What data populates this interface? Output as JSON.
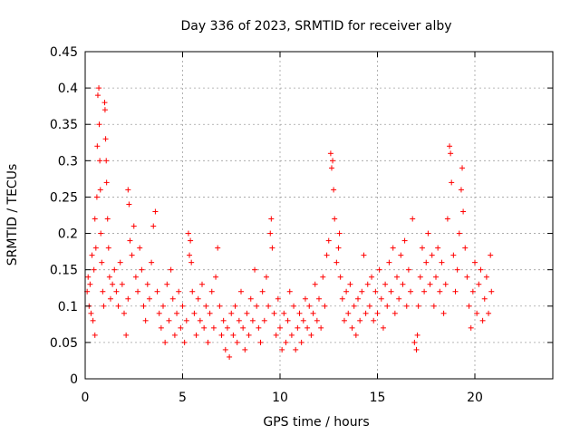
{
  "chart_data": {
    "type": "scatter",
    "title": "Day 336 of 2023, SRMTID for receiver alby",
    "xlabel": "GPS time / hours",
    "ylabel": "SRMTID / TECUs",
    "xlim": [
      0,
      24
    ],
    "ylim": [
      0,
      0.45
    ],
    "xticks": [
      "0",
      "5",
      "10",
      "15",
      "20"
    ],
    "yticks": [
      "0",
      "0.05",
      "0.1",
      "0.15",
      "0.2",
      "0.25",
      "0.3",
      "0.35",
      "0.4",
      "0.45"
    ],
    "grid": true,
    "marker": "plus",
    "series": [
      {
        "color": "#ff0000",
        "points": [
          [
            0.1,
            0.12
          ],
          [
            0.15,
            0.14
          ],
          [
            0.2,
            0.1
          ],
          [
            0.25,
            0.13
          ],
          [
            0.3,
            0.09
          ],
          [
            0.35,
            0.17
          ],
          [
            0.4,
            0.08
          ],
          [
            0.45,
            0.15
          ],
          [
            0.5,
            0.06
          ],
          [
            0.5,
            0.22
          ],
          [
            0.55,
            0.18
          ],
          [
            0.6,
            0.25
          ],
          [
            0.62,
            0.32
          ],
          [
            0.65,
            0.39
          ],
          [
            0.7,
            0.4
          ],
          [
            0.72,
            0.35
          ],
          [
            0.75,
            0.3
          ],
          [
            0.78,
            0.26
          ],
          [
            0.8,
            0.2
          ],
          [
            0.85,
            0.16
          ],
          [
            0.9,
            0.12
          ],
          [
            0.95,
            0.1
          ],
          [
            1.0,
            0.38
          ],
          [
            1.02,
            0.37
          ],
          [
            1.05,
            0.33
          ],
          [
            1.08,
            0.3
          ],
          [
            1.1,
            0.27
          ],
          [
            1.15,
            0.22
          ],
          [
            1.2,
            0.18
          ],
          [
            1.25,
            0.14
          ],
          [
            1.3,
            0.11
          ],
          [
            1.4,
            0.13
          ],
          [
            1.5,
            0.15
          ],
          [
            1.6,
            0.12
          ],
          [
            1.7,
            0.1
          ],
          [
            1.8,
            0.16
          ],
          [
            1.9,
            0.13
          ],
          [
            2.0,
            0.09
          ],
          [
            2.1,
            0.06
          ],
          [
            2.2,
            0.11
          ],
          [
            2.2,
            0.26
          ],
          [
            2.25,
            0.24
          ],
          [
            2.3,
            0.19
          ],
          [
            2.4,
            0.17
          ],
          [
            2.5,
            0.21
          ],
          [
            2.6,
            0.14
          ],
          [
            2.7,
            0.12
          ],
          [
            2.8,
            0.18
          ],
          [
            2.9,
            0.15
          ],
          [
            3.0,
            0.1
          ],
          [
            3.1,
            0.08
          ],
          [
            3.2,
            0.13
          ],
          [
            3.3,
            0.11
          ],
          [
            3.4,
            0.16
          ],
          [
            3.5,
            0.21
          ],
          [
            3.6,
            0.23
          ],
          [
            3.7,
            0.12
          ],
          [
            3.8,
            0.09
          ],
          [
            3.9,
            0.07
          ],
          [
            4.0,
            0.1
          ],
          [
            4.1,
            0.05
          ],
          [
            4.2,
            0.13
          ],
          [
            4.3,
            0.08
          ],
          [
            4.4,
            0.15
          ],
          [
            4.5,
            0.11
          ],
          [
            4.6,
            0.06
          ],
          [
            4.7,
            0.09
          ],
          [
            4.8,
            0.12
          ],
          [
            4.9,
            0.07
          ],
          [
            5.0,
            0.1
          ],
          [
            5.1,
            0.05
          ],
          [
            5.2,
            0.08
          ],
          [
            5.3,
            0.2
          ],
          [
            5.35,
            0.17
          ],
          [
            5.4,
            0.19
          ],
          [
            5.45,
            0.16
          ],
          [
            5.5,
            0.12
          ],
          [
            5.6,
            0.09
          ],
          [
            5.7,
            0.06
          ],
          [
            5.8,
            0.11
          ],
          [
            5.9,
            0.08
          ],
          [
            6.0,
            0.13
          ],
          [
            6.1,
            0.07
          ],
          [
            6.2,
            0.1
          ],
          [
            6.3,
            0.05
          ],
          [
            6.4,
            0.09
          ],
          [
            6.5,
            0.12
          ],
          [
            6.6,
            0.07
          ],
          [
            6.7,
            0.14
          ],
          [
            6.8,
            0.18
          ],
          [
            6.9,
            0.1
          ],
          [
            7.0,
            0.06
          ],
          [
            7.1,
            0.08
          ],
          [
            7.2,
            0.04
          ],
          [
            7.3,
            0.07
          ],
          [
            7.4,
            0.03
          ],
          [
            7.5,
            0.09
          ],
          [
            7.6,
            0.06
          ],
          [
            7.7,
            0.1
          ],
          [
            7.8,
            0.05
          ],
          [
            7.9,
            0.08
          ],
          [
            8.0,
            0.12
          ],
          [
            8.1,
            0.07
          ],
          [
            8.2,
            0.04
          ],
          [
            8.3,
            0.09
          ],
          [
            8.4,
            0.06
          ],
          [
            8.5,
            0.11
          ],
          [
            8.6,
            0.08
          ],
          [
            8.7,
            0.15
          ],
          [
            8.8,
            0.1
          ],
          [
            8.9,
            0.07
          ],
          [
            9.0,
            0.05
          ],
          [
            9.1,
            0.12
          ],
          [
            9.2,
            0.08
          ],
          [
            9.3,
            0.14
          ],
          [
            9.4,
            0.1
          ],
          [
            9.5,
            0.2
          ],
          [
            9.55,
            0.22
          ],
          [
            9.6,
            0.18
          ],
          [
            9.7,
            0.09
          ],
          [
            9.8,
            0.06
          ],
          [
            9.9,
            0.11
          ],
          [
            10.0,
            0.07
          ],
          [
            10.1,
            0.04
          ],
          [
            10.2,
            0.09
          ],
          [
            10.3,
            0.05
          ],
          [
            10.4,
            0.08
          ],
          [
            10.5,
            0.12
          ],
          [
            10.6,
            0.06
          ],
          [
            10.7,
            0.1
          ],
          [
            10.8,
            0.04
          ],
          [
            10.9,
            0.07
          ],
          [
            11.0,
            0.09
          ],
          [
            11.1,
            0.05
          ],
          [
            11.2,
            0.08
          ],
          [
            11.3,
            0.11
          ],
          [
            11.4,
            0.07
          ],
          [
            11.5,
            0.1
          ],
          [
            11.6,
            0.06
          ],
          [
            11.7,
            0.09
          ],
          [
            11.8,
            0.13
          ],
          [
            11.9,
            0.08
          ],
          [
            12.0,
            0.11
          ],
          [
            12.1,
            0.07
          ],
          [
            12.2,
            0.14
          ],
          [
            12.3,
            0.1
          ],
          [
            12.4,
            0.17
          ],
          [
            12.5,
            0.19
          ],
          [
            12.6,
            0.31
          ],
          [
            12.65,
            0.29
          ],
          [
            12.7,
            0.3
          ],
          [
            12.75,
            0.26
          ],
          [
            12.8,
            0.22
          ],
          [
            12.9,
            0.16
          ],
          [
            13.0,
            0.18
          ],
          [
            13.05,
            0.2
          ],
          [
            13.1,
            0.14
          ],
          [
            13.2,
            0.11
          ],
          [
            13.3,
            0.08
          ],
          [
            13.4,
            0.12
          ],
          [
            13.5,
            0.09
          ],
          [
            13.6,
            0.13
          ],
          [
            13.7,
            0.07
          ],
          [
            13.8,
            0.1
          ],
          [
            13.9,
            0.06
          ],
          [
            14.0,
            0.11
          ],
          [
            14.1,
            0.08
          ],
          [
            14.2,
            0.12
          ],
          [
            14.3,
            0.17
          ],
          [
            14.4,
            0.09
          ],
          [
            14.5,
            0.13
          ],
          [
            14.6,
            0.1
          ],
          [
            14.7,
            0.14
          ],
          [
            14.8,
            0.08
          ],
          [
            14.9,
            0.12
          ],
          [
            15.0,
            0.09
          ],
          [
            15.1,
            0.15
          ],
          [
            15.2,
            0.11
          ],
          [
            15.3,
            0.07
          ],
          [
            15.4,
            0.13
          ],
          [
            15.5,
            0.1
          ],
          [
            15.6,
            0.16
          ],
          [
            15.7,
            0.12
          ],
          [
            15.8,
            0.18
          ],
          [
            15.9,
            0.09
          ],
          [
            16.0,
            0.14
          ],
          [
            16.1,
            0.11
          ],
          [
            16.2,
            0.17
          ],
          [
            16.3,
            0.13
          ],
          [
            16.4,
            0.19
          ],
          [
            16.5,
            0.1
          ],
          [
            16.6,
            0.15
          ],
          [
            16.7,
            0.12
          ],
          [
            16.8,
            0.22
          ],
          [
            16.9,
            0.05
          ],
          [
            17.0,
            0.04
          ],
          [
            17.05,
            0.06
          ],
          [
            17.1,
            0.1
          ],
          [
            17.2,
            0.14
          ],
          [
            17.3,
            0.18
          ],
          [
            17.4,
            0.12
          ],
          [
            17.5,
            0.16
          ],
          [
            17.6,
            0.2
          ],
          [
            17.7,
            0.13
          ],
          [
            17.8,
            0.17
          ],
          [
            17.9,
            0.1
          ],
          [
            18.0,
            0.14
          ],
          [
            18.1,
            0.18
          ],
          [
            18.2,
            0.12
          ],
          [
            18.3,
            0.16
          ],
          [
            18.4,
            0.09
          ],
          [
            18.5,
            0.13
          ],
          [
            18.6,
            0.22
          ],
          [
            18.7,
            0.32
          ],
          [
            18.75,
            0.31
          ],
          [
            18.8,
            0.27
          ],
          [
            18.9,
            0.17
          ],
          [
            19.0,
            0.12
          ],
          [
            19.1,
            0.15
          ],
          [
            19.2,
            0.2
          ],
          [
            19.3,
            0.26
          ],
          [
            19.35,
            0.29
          ],
          [
            19.4,
            0.23
          ],
          [
            19.5,
            0.18
          ],
          [
            19.6,
            0.14
          ],
          [
            19.7,
            0.1
          ],
          [
            19.8,
            0.07
          ],
          [
            19.9,
            0.12
          ],
          [
            20.0,
            0.16
          ],
          [
            20.1,
            0.09
          ],
          [
            20.2,
            0.13
          ],
          [
            20.3,
            0.15
          ],
          [
            20.4,
            0.08
          ],
          [
            20.5,
            0.11
          ],
          [
            20.6,
            0.14
          ],
          [
            20.7,
            0.09
          ],
          [
            20.8,
            0.17
          ],
          [
            20.85,
            0.12
          ]
        ]
      }
    ]
  }
}
